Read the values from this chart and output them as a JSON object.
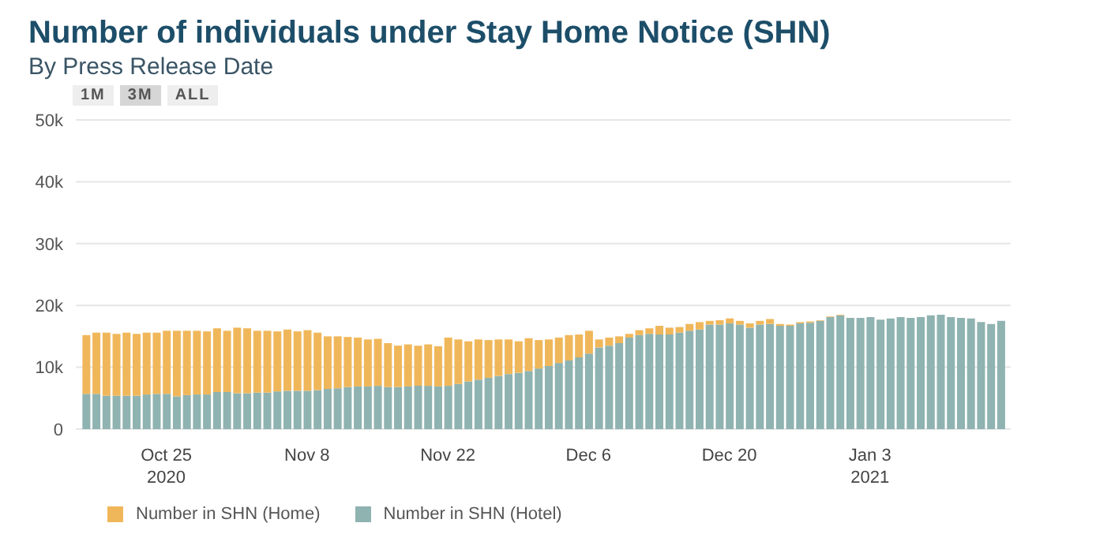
{
  "chart_data": {
    "type": "bar",
    "title": "Number of individuals under Stay Home Notice (SHN)",
    "subtitle": "By Press Release Date",
    "annotations": [
      "1M",
      "3M",
      "ALL"
    ],
    "stacked": true,
    "grid": "y",
    "legend": "bottom",
    "x": [
      "2020-10-17",
      "2020-10-18",
      "2020-10-19",
      "2020-10-20",
      "2020-10-21",
      "2020-10-22",
      "2020-10-23",
      "2020-10-24",
      "2020-10-25",
      "2020-10-26",
      "2020-10-27",
      "2020-10-28",
      "2020-10-29",
      "2020-10-30",
      "2020-10-31",
      "2020-11-01",
      "2020-11-02",
      "2020-11-03",
      "2020-11-04",
      "2020-11-05",
      "2020-11-06",
      "2020-11-07",
      "2020-11-08",
      "2020-11-09",
      "2020-11-10",
      "2020-11-11",
      "2020-11-12",
      "2020-11-13",
      "2020-11-14",
      "2020-11-15",
      "2020-11-16",
      "2020-11-17",
      "2020-11-18",
      "2020-11-19",
      "2020-11-20",
      "2020-11-21",
      "2020-11-22",
      "2020-11-23",
      "2020-11-24",
      "2020-11-25",
      "2020-11-26",
      "2020-11-27",
      "2020-11-28",
      "2020-11-29",
      "2020-11-30",
      "2020-12-01",
      "2020-12-02",
      "2020-12-03",
      "2020-12-04",
      "2020-12-05",
      "2020-12-06",
      "2020-12-07",
      "2020-12-08",
      "2020-12-09",
      "2020-12-10",
      "2020-12-11",
      "2020-12-12",
      "2020-12-13",
      "2020-12-14",
      "2020-12-15",
      "2020-12-16",
      "2020-12-17",
      "2020-12-18",
      "2020-12-19",
      "2020-12-20",
      "2020-12-21",
      "2020-12-22",
      "2020-12-23",
      "2020-12-24",
      "2020-12-25",
      "2020-12-26",
      "2020-12-27",
      "2020-12-28",
      "2020-12-29",
      "2020-12-30",
      "2020-12-31",
      "2021-01-01",
      "2021-01-02",
      "2021-01-03",
      "2021-01-04",
      "2021-01-05",
      "2021-01-06",
      "2021-01-07",
      "2021-01-08",
      "2021-01-09",
      "2021-01-10",
      "2021-01-11",
      "2021-01-12",
      "2021-01-13",
      "2021-01-14",
      "2021-01-15",
      "2021-01-16"
    ],
    "series": [
      {
        "name": "Number in SHN (Hotel)",
        "color": "#8fb3b0",
        "values": [
          5700,
          5700,
          5400,
          5400,
          5400,
          5400,
          5600,
          5700,
          5700,
          5300,
          5500,
          5600,
          5600,
          6000,
          6000,
          5800,
          5800,
          5900,
          5900,
          6100,
          6200,
          6200,
          6200,
          6300,
          6500,
          6600,
          6800,
          6900,
          6900,
          7000,
          6800,
          6800,
          6900,
          7000,
          7000,
          6900,
          7000,
          7300,
          7700,
          8000,
          8300,
          8600,
          8900,
          9100,
          9400,
          9800,
          10200,
          10700,
          11100,
          11600,
          12200,
          13200,
          13500,
          13900,
          14800,
          15200,
          15400,
          15300,
          15300,
          15600,
          15900,
          16100,
          16900,
          16900,
          17100,
          16900,
          16400,
          16900,
          17000,
          16700,
          16700,
          17100,
          17200,
          17500,
          18100,
          18400,
          18000,
          18000,
          18100,
          17700,
          17900,
          18100,
          18000,
          18100,
          18400,
          18500,
          18100,
          18000,
          17900,
          17300,
          17000,
          17500
        ]
      },
      {
        "name": "Number in SHN (Home)",
        "color": "#f0b75a",
        "values": [
          9500,
          9900,
          10200,
          10000,
          10200,
          10000,
          10000,
          9900,
          10200,
          10600,
          10400,
          10300,
          10200,
          10300,
          9900,
          10600,
          10500,
          10000,
          10000,
          9700,
          9900,
          9600,
          9800,
          9300,
          8500,
          8400,
          8100,
          7900,
          7600,
          7600,
          7100,
          6700,
          6800,
          6500,
          6700,
          6500,
          7800,
          7200,
          6500,
          6500,
          6100,
          5900,
          5600,
          5100,
          5300,
          4600,
          4300,
          4100,
          4100,
          3700,
          3700,
          1300,
          1300,
          1100,
          600,
          800,
          900,
          1400,
          1100,
          900,
          1100,
          1200,
          600,
          700,
          800,
          600,
          700,
          600,
          800,
          300,
          200,
          200,
          200,
          100,
          100,
          100,
          0,
          0,
          0,
          0,
          0,
          0,
          0,
          0,
          0,
          0,
          0,
          0,
          0,
          0,
          0,
          0
        ]
      }
    ],
    "xlim": [
      "2020-10-16",
      "2021-01-17"
    ],
    "xticks": [
      {
        "value": "2020-10-25",
        "label": "Oct 25\n2020"
      },
      {
        "value": "2020-11-08",
        "label": "Nov 8"
      },
      {
        "value": "2020-11-22",
        "label": "Nov 22"
      },
      {
        "value": "2020-12-06",
        "label": "Dec 6"
      },
      {
        "value": "2020-12-20",
        "label": "Dec 20"
      },
      {
        "value": "2021-01-03",
        "label": "Jan 3\n2021"
      }
    ],
    "ylim": [
      0,
      50000
    ],
    "yticks": [
      0,
      {
        "value": 10000,
        "label": "10k"
      },
      {
        "value": 20000,
        "label": "20k"
      },
      {
        "value": 30000,
        "label": "30k"
      },
      {
        "value": 40000,
        "label": "40k"
      },
      {
        "value": 50000,
        "label": "50k"
      }
    ]
  }
}
